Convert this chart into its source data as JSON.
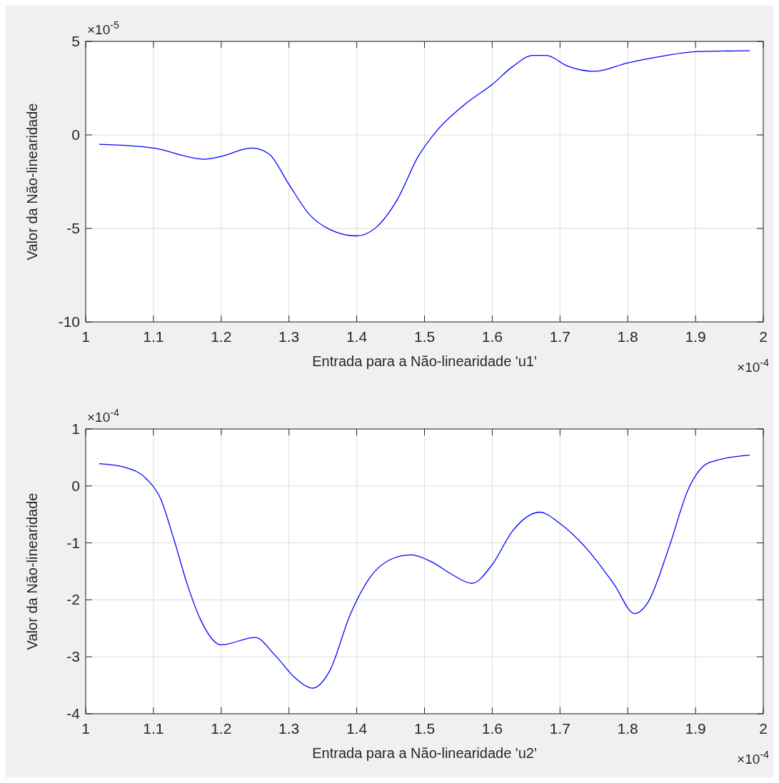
{
  "chart_data": [
    {
      "type": "line",
      "xlabel": "Entrada para a Não-linearidade 'u1'",
      "ylabel": "Valor da Não-linearidade",
      "annotations": [
        "×10$^{-5}$",
        "×10$^{-4}$"
      ],
      "xlim": [
        1,
        2
      ],
      "ylim": [
        -10,
        5
      ],
      "xticks": [
        1,
        1.1,
        1.2,
        1.3,
        1.4,
        1.5,
        1.6,
        1.7,
        1.8,
        1.9,
        2
      ],
      "yticks": [
        -10,
        -5,
        0,
        5
      ],
      "grid": true,
      "series": [
        {
          "color": "#0000ff",
          "x": [
            1.02,
            1.1,
            1.175,
            1.2,
            1.245,
            1.27,
            1.3,
            1.33,
            1.36,
            1.4,
            1.43,
            1.46,
            1.49,
            1.52,
            1.56,
            1.6,
            1.63,
            1.66,
            1.68,
            1.71,
            1.75,
            1.8,
            1.85,
            1.9,
            1.98
          ],
          "values": [
            -0.5,
            -0.7,
            -1.3,
            -1.15,
            -0.7,
            -1.0,
            -2.65,
            -4.25,
            -5.05,
            -5.4,
            -4.9,
            -3.45,
            -1.2,
            0.3,
            1.65,
            2.7,
            3.65,
            4.25,
            4.25,
            3.7,
            3.4,
            3.85,
            4.2,
            4.45,
            4.5
          ]
        }
      ]
    },
    {
      "type": "line",
      "xlabel": "Entrada para a Não-linearidade 'u2'",
      "ylabel": "Valor da Não-linearidade",
      "annotations": [
        "×10$^{-4}$",
        "×10$^{-4}$"
      ],
      "xlim": [
        1,
        2
      ],
      "ylim": [
        -4,
        1
      ],
      "xticks": [
        1,
        1.1,
        1.2,
        1.3,
        1.4,
        1.5,
        1.6,
        1.7,
        1.8,
        1.9,
        2
      ],
      "yticks": [
        -4,
        -3,
        -2,
        -1,
        0,
        1
      ],
      "grid": true,
      "series": [
        {
          "color": "#0000ff",
          "x": [
            1.02,
            1.06,
            1.09,
            1.11,
            1.13,
            1.15,
            1.17,
            1.2,
            1.25,
            1.28,
            1.31,
            1.335,
            1.36,
            1.39,
            1.42,
            1.45,
            1.48,
            1.51,
            1.54,
            1.57,
            1.6,
            1.63,
            1.67,
            1.7,
            1.74,
            1.78,
            1.81,
            1.83,
            1.86,
            1.89,
            1.92,
            1.98
          ],
          "values": [
            0.39,
            0.32,
            0.12,
            -0.21,
            -0.93,
            -1.73,
            -2.36,
            -2.79,
            -2.66,
            -2.98,
            -3.38,
            -3.55,
            -3.25,
            -2.27,
            -1.6,
            -1.29,
            -1.21,
            -1.33,
            -1.55,
            -1.71,
            -1.38,
            -0.79,
            -0.46,
            -0.66,
            -1.11,
            -1.73,
            -2.24,
            -2.04,
            -1.11,
            -0.04,
            0.41,
            0.54
          ]
        }
      ]
    }
  ]
}
